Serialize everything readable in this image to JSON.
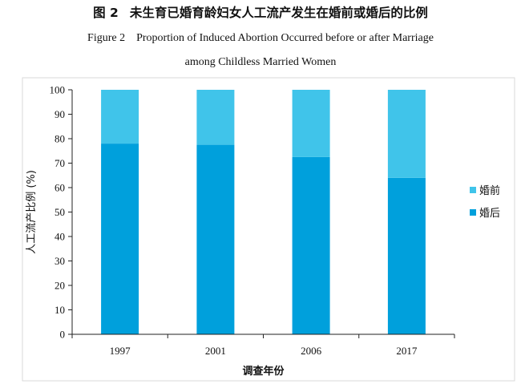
{
  "figure": {
    "number_cn": "图 2",
    "title_cn": "未生育已婚育龄妇女人工流产发生在婚前或婚后的比例",
    "label_en": "Figure 2",
    "title_en_line1": "Proportion of Induced Abortion Occurred before or after Marriage",
    "title_en_line2": "among Childless Married Women"
  },
  "chart_data": {
    "type": "bar",
    "stacked": true,
    "categories": [
      "1997",
      "2001",
      "2006",
      "2017"
    ],
    "series": [
      {
        "name": "婚后",
        "values": [
          78,
          77.5,
          72.5,
          64
        ],
        "color": "#00a0dc"
      },
      {
        "name": "婚前",
        "values": [
          22,
          22.5,
          27.5,
          36
        ],
        "color": "#40c4ea"
      }
    ],
    "xlabel": "调查年份",
    "ylabel": "人工流产比例 (%)",
    "ylim": [
      0,
      100
    ],
    "yticks": [
      0,
      10,
      20,
      30,
      40,
      50,
      60,
      70,
      80,
      90,
      100
    ],
    "grid": false,
    "legend_position": "right",
    "legend_order": [
      "婚前",
      "婚后"
    ]
  }
}
